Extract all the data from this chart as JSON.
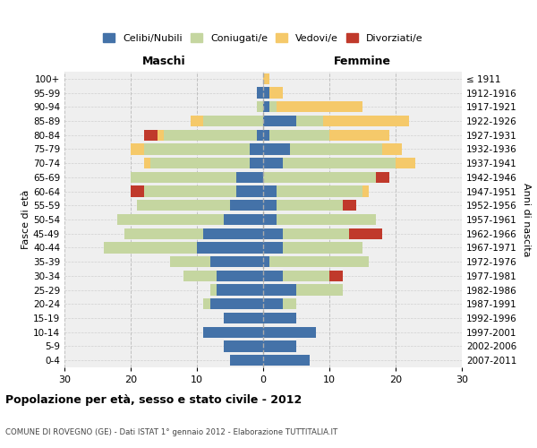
{
  "age_groups": [
    "0-4",
    "5-9",
    "10-14",
    "15-19",
    "20-24",
    "25-29",
    "30-34",
    "35-39",
    "40-44",
    "45-49",
    "50-54",
    "55-59",
    "60-64",
    "65-69",
    "70-74",
    "75-79",
    "80-84",
    "85-89",
    "90-94",
    "95-99",
    "100+"
  ],
  "birth_years": [
    "2007-2011",
    "2002-2006",
    "1997-2001",
    "1992-1996",
    "1987-1991",
    "1982-1986",
    "1977-1981",
    "1972-1976",
    "1967-1971",
    "1962-1966",
    "1957-1961",
    "1952-1956",
    "1947-1951",
    "1942-1946",
    "1937-1941",
    "1932-1936",
    "1927-1931",
    "1922-1926",
    "1917-1921",
    "1912-1916",
    "≤ 1911"
  ],
  "males": {
    "celibi": [
      5,
      6,
      9,
      6,
      8,
      7,
      7,
      8,
      10,
      9,
      6,
      5,
      4,
      4,
      2,
      2,
      1,
      0,
      0,
      1,
      0
    ],
    "coniugati": [
      0,
      0,
      0,
      0,
      1,
      1,
      5,
      6,
      14,
      12,
      16,
      14,
      14,
      16,
      15,
      16,
      14,
      9,
      1,
      0,
      0
    ],
    "vedovi": [
      0,
      0,
      0,
      0,
      0,
      0,
      0,
      0,
      0,
      0,
      0,
      0,
      0,
      0,
      1,
      2,
      1,
      2,
      0,
      0,
      0
    ],
    "divorziati": [
      0,
      0,
      0,
      0,
      0,
      0,
      0,
      0,
      0,
      0,
      0,
      0,
      2,
      0,
      0,
      0,
      2,
      0,
      0,
      0,
      0
    ]
  },
  "females": {
    "nubili": [
      7,
      5,
      8,
      5,
      3,
      5,
      3,
      1,
      3,
      3,
      2,
      2,
      2,
      0,
      3,
      4,
      1,
      5,
      1,
      1,
      0
    ],
    "coniugate": [
      0,
      0,
      0,
      0,
      2,
      7,
      7,
      15,
      12,
      10,
      15,
      10,
      13,
      17,
      17,
      14,
      9,
      4,
      1,
      0,
      0
    ],
    "vedove": [
      0,
      0,
      0,
      0,
      0,
      0,
      0,
      0,
      0,
      0,
      0,
      0,
      1,
      0,
      3,
      3,
      9,
      13,
      13,
      2,
      1
    ],
    "divorziate": [
      0,
      0,
      0,
      0,
      0,
      0,
      2,
      0,
      0,
      5,
      0,
      2,
      0,
      2,
      0,
      0,
      0,
      0,
      0,
      0,
      0
    ]
  },
  "colors": {
    "celibi": "#4472a8",
    "coniugati": "#c5d6a0",
    "vedovi": "#f5c96a",
    "divorziati": "#c0392b"
  },
  "title": "Popolazione per età, sesso e stato civile - 2012",
  "subtitle": "COMUNE DI ROVEGNO (GE) - Dati ISTAT 1° gennaio 2012 - Elaborazione TUTTITALIA.IT",
  "xlabel_left": "Maschi",
  "xlabel_right": "Femmine",
  "ylabel_left": "Fasce di età",
  "ylabel_right": "Anni di nascita",
  "xlim": 30,
  "legend_labels": [
    "Celibi/Nubili",
    "Coniugati/e",
    "Vedovi/e",
    "Divorziati/e"
  ],
  "bg_color": "#ffffff",
  "grid_color": "#cccccc"
}
